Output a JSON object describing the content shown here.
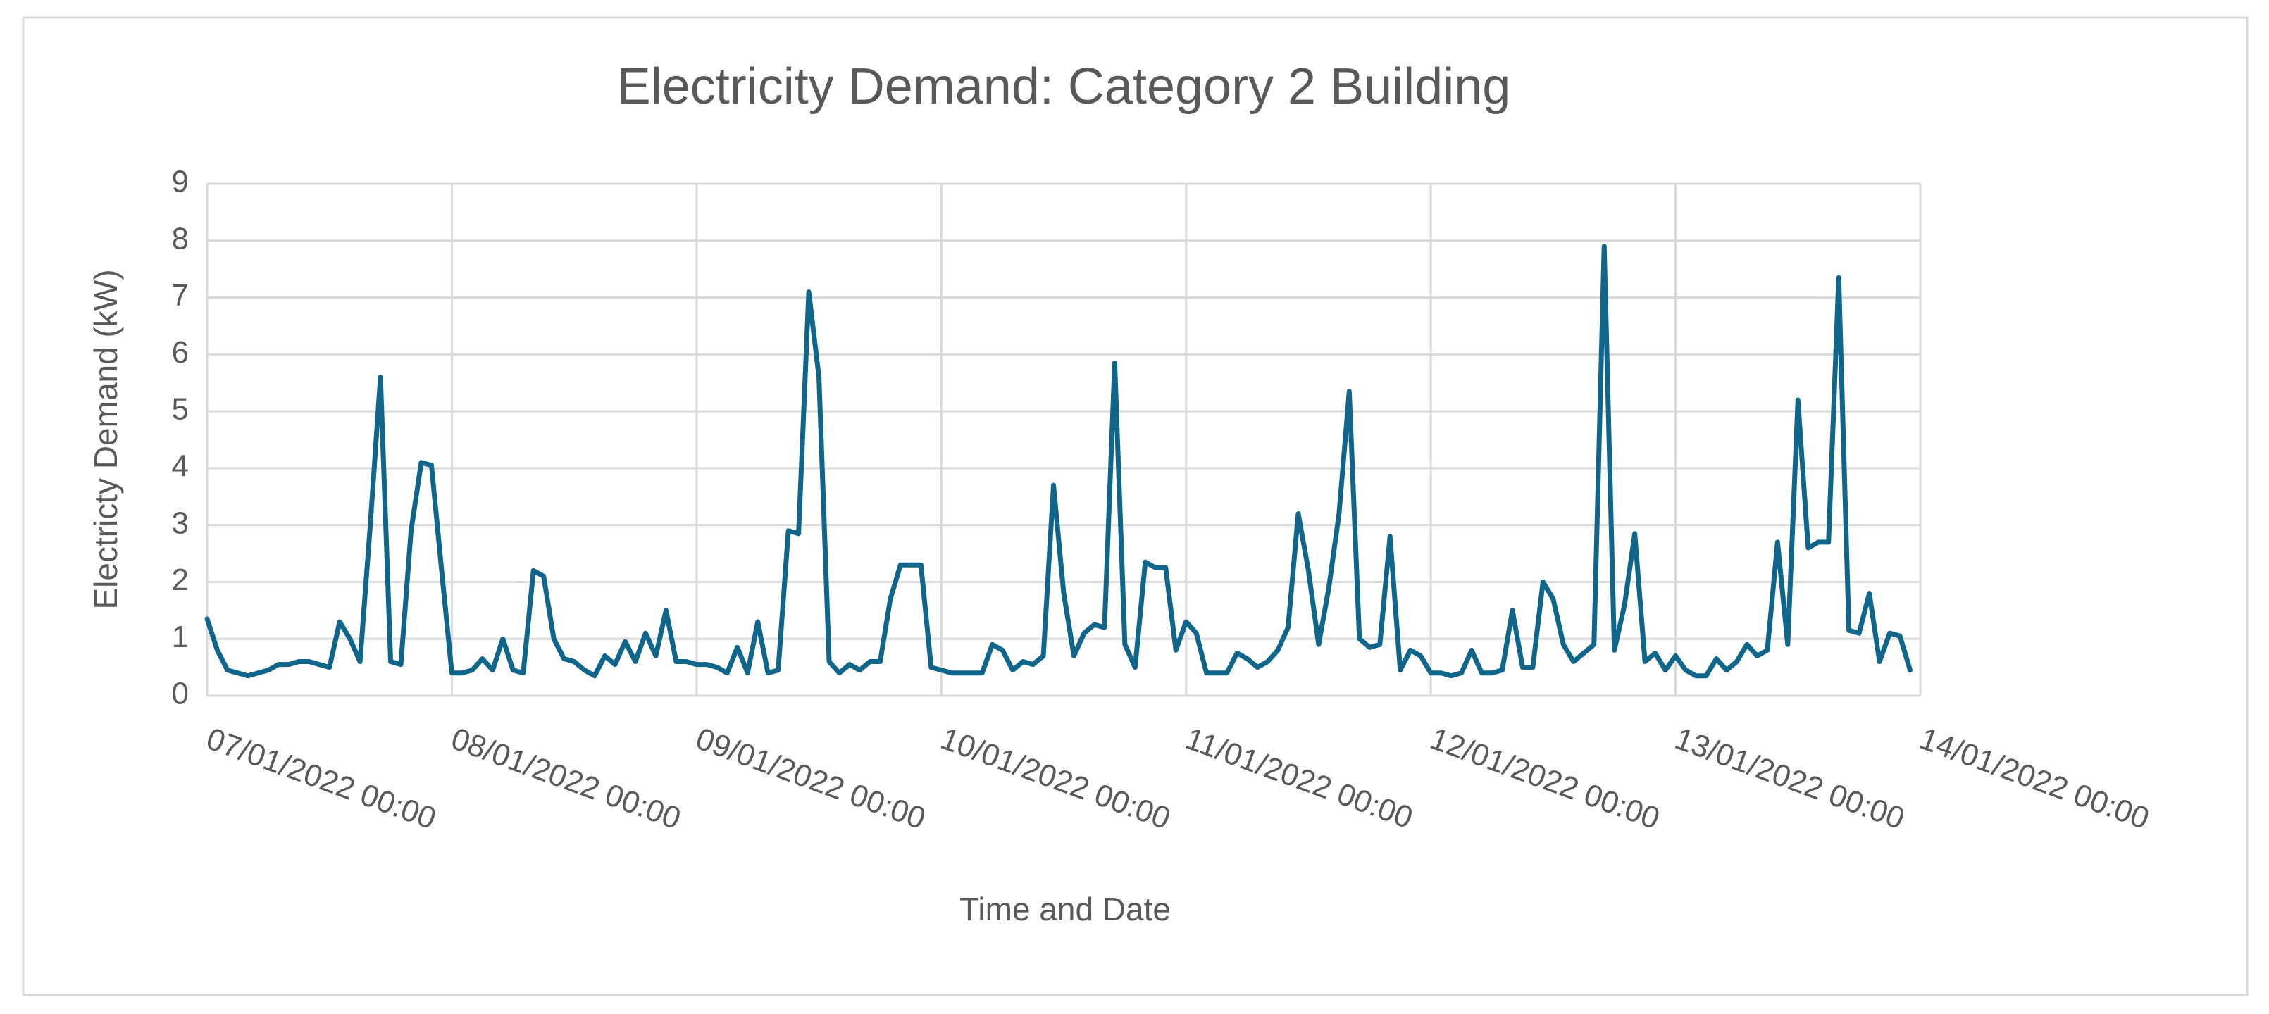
{
  "chart_data": {
    "type": "line",
    "title": "Electricity Demand: Category 2 Building",
    "x_label": "Time and Date",
    "y_label": "Electricty Demand (kW)",
    "color": "#10658a",
    "grid": true,
    "xlim": [
      "07/01/2022 00:00",
      "14/01/2022 00:00"
    ],
    "xticks": [
      "07/01/2022 00:00",
      "08/01/2022 00:00",
      "09/01/2022 00:00",
      "10/01/2022 00:00",
      "11/01/2022 00:00",
      "12/01/2022 00:00",
      "13/01/2022 00:00",
      "14/01/2022 00:00"
    ],
    "ylim": [
      0,
      9
    ],
    "yticks": [
      0,
      1,
      2,
      3,
      4,
      5,
      6,
      7,
      8,
      9
    ],
    "x": [
      "07/01/2022 00:00",
      "07/01/2022 01:00",
      "07/01/2022 02:00",
      "07/01/2022 03:00",
      "07/01/2022 04:00",
      "07/01/2022 05:00",
      "07/01/2022 06:00",
      "07/01/2022 07:00",
      "07/01/2022 08:00",
      "07/01/2022 09:00",
      "07/01/2022 10:00",
      "07/01/2022 11:00",
      "07/01/2022 12:00",
      "07/01/2022 13:00",
      "07/01/2022 14:00",
      "07/01/2022 15:00",
      "07/01/2022 16:00",
      "07/01/2022 17:00",
      "07/01/2022 18:00",
      "07/01/2022 19:00",
      "07/01/2022 20:00",
      "07/01/2022 21:00",
      "07/01/2022 22:00",
      "07/01/2022 23:00",
      "08/01/2022 00:00",
      "08/01/2022 01:00",
      "08/01/2022 02:00",
      "08/01/2022 03:00",
      "08/01/2022 04:00",
      "08/01/2022 05:00",
      "08/01/2022 06:00",
      "08/01/2022 07:00",
      "08/01/2022 08:00",
      "08/01/2022 09:00",
      "08/01/2022 10:00",
      "08/01/2022 11:00",
      "08/01/2022 12:00",
      "08/01/2022 13:00",
      "08/01/2022 14:00",
      "08/01/2022 15:00",
      "08/01/2022 16:00",
      "08/01/2022 17:00",
      "08/01/2022 18:00",
      "08/01/2022 19:00",
      "08/01/2022 20:00",
      "08/01/2022 21:00",
      "08/01/2022 22:00",
      "08/01/2022 23:00",
      "09/01/2022 00:00",
      "09/01/2022 01:00",
      "09/01/2022 02:00",
      "09/01/2022 03:00",
      "09/01/2022 04:00",
      "09/01/2022 05:00",
      "09/01/2022 06:00",
      "09/01/2022 07:00",
      "09/01/2022 08:00",
      "09/01/2022 09:00",
      "09/01/2022 10:00",
      "09/01/2022 11:00",
      "09/01/2022 12:00",
      "09/01/2022 13:00",
      "09/01/2022 14:00",
      "09/01/2022 15:00",
      "09/01/2022 16:00",
      "09/01/2022 17:00",
      "09/01/2022 18:00",
      "09/01/2022 19:00",
      "09/01/2022 20:00",
      "09/01/2022 21:00",
      "09/01/2022 22:00",
      "09/01/2022 23:00",
      "10/01/2022 00:00",
      "10/01/2022 01:00",
      "10/01/2022 02:00",
      "10/01/2022 03:00",
      "10/01/2022 04:00",
      "10/01/2022 05:00",
      "10/01/2022 06:00",
      "10/01/2022 07:00",
      "10/01/2022 08:00",
      "10/01/2022 09:00",
      "10/01/2022 10:00",
      "10/01/2022 11:00",
      "10/01/2022 12:00",
      "10/01/2022 13:00",
      "10/01/2022 14:00",
      "10/01/2022 15:00",
      "10/01/2022 16:00",
      "10/01/2022 17:00",
      "10/01/2022 18:00",
      "10/01/2022 19:00",
      "10/01/2022 20:00",
      "10/01/2022 21:00",
      "10/01/2022 22:00",
      "10/01/2022 23:00",
      "11/01/2022 00:00",
      "11/01/2022 01:00",
      "11/01/2022 02:00",
      "11/01/2022 03:00",
      "11/01/2022 04:00",
      "11/01/2022 05:00",
      "11/01/2022 06:00",
      "11/01/2022 07:00",
      "11/01/2022 08:00",
      "11/01/2022 09:00",
      "11/01/2022 10:00",
      "11/01/2022 11:00",
      "11/01/2022 12:00",
      "11/01/2022 13:00",
      "11/01/2022 14:00",
      "11/01/2022 15:00",
      "11/01/2022 16:00",
      "11/01/2022 17:00",
      "11/01/2022 18:00",
      "11/01/2022 19:00",
      "11/01/2022 20:00",
      "11/01/2022 21:00",
      "11/01/2022 22:00",
      "11/01/2022 23:00",
      "12/01/2022 00:00",
      "12/01/2022 01:00",
      "12/01/2022 02:00",
      "12/01/2022 03:00",
      "12/01/2022 04:00",
      "12/01/2022 05:00",
      "12/01/2022 06:00",
      "12/01/2022 07:00",
      "12/01/2022 08:00",
      "12/01/2022 09:00",
      "12/01/2022 10:00",
      "12/01/2022 11:00",
      "12/01/2022 12:00",
      "12/01/2022 13:00",
      "12/01/2022 14:00",
      "12/01/2022 15:00",
      "12/01/2022 16:00",
      "12/01/2022 17:00",
      "12/01/2022 18:00",
      "12/01/2022 19:00",
      "12/01/2022 20:00",
      "12/01/2022 21:00",
      "12/01/2022 22:00",
      "12/01/2022 23:00",
      "13/01/2022 00:00",
      "13/01/2022 01:00",
      "13/01/2022 02:00",
      "13/01/2022 03:00",
      "13/01/2022 04:00",
      "13/01/2022 05:00",
      "13/01/2022 06:00",
      "13/01/2022 07:00",
      "13/01/2022 08:00",
      "13/01/2022 09:00",
      "13/01/2022 10:00",
      "13/01/2022 11:00",
      "13/01/2022 12:00",
      "13/01/2022 13:00",
      "13/01/2022 14:00",
      "13/01/2022 15:00",
      "13/01/2022 16:00",
      "13/01/2022 17:00",
      "13/01/2022 18:00",
      "13/01/2022 19:00",
      "13/01/2022 20:00",
      "13/01/2022 21:00",
      "13/01/2022 22:00",
      "13/01/2022 23:00"
    ],
    "values": [
      1.35,
      0.8,
      0.45,
      0.4,
      0.35,
      0.4,
      0.45,
      0.55,
      0.55,
      0.6,
      0.6,
      0.55,
      0.5,
      1.3,
      1.0,
      0.6,
      3.0,
      5.6,
      0.6,
      0.55,
      2.9,
      4.1,
      4.05,
      2.2,
      0.4,
      0.4,
      0.45,
      0.65,
      0.45,
      1.0,
      0.45,
      0.4,
      2.2,
      2.1,
      1.0,
      0.65,
      0.6,
      0.45,
      0.35,
      0.7,
      0.55,
      0.95,
      0.6,
      1.1,
      0.7,
      1.5,
      0.6,
      0.6,
      0.55,
      0.55,
      0.5,
      0.4,
      0.85,
      0.4,
      1.3,
      0.4,
      0.45,
      2.9,
      2.85,
      7.1,
      5.6,
      0.6,
      0.4,
      0.55,
      0.45,
      0.6,
      0.6,
      1.7,
      2.3,
      2.3,
      2.3,
      0.5,
      0.45,
      0.4,
      0.4,
      0.4,
      0.4,
      0.9,
      0.8,
      0.45,
      0.6,
      0.55,
      0.7,
      3.7,
      1.8,
      0.7,
      1.1,
      1.25,
      1.2,
      5.85,
      0.9,
      0.5,
      2.35,
      2.25,
      2.25,
      0.8,
      1.3,
      1.1,
      0.4,
      0.4,
      0.4,
      0.75,
      0.65,
      0.5,
      0.6,
      0.8,
      1.2,
      3.2,
      2.2,
      0.9,
      1.9,
      3.2,
      5.35,
      1.0,
      0.85,
      0.9,
      2.8,
      0.45,
      0.8,
      0.7,
      0.4,
      0.4,
      0.35,
      0.4,
      0.8,
      0.4,
      0.4,
      0.45,
      1.5,
      0.5,
      0.5,
      2.0,
      1.7,
      0.9,
      0.6,
      0.75,
      0.9,
      7.9,
      0.8,
      1.6,
      2.85,
      0.6,
      0.75,
      0.45,
      0.7,
      0.45,
      0.35,
      0.35,
      0.65,
      0.45,
      0.6,
      0.9,
      0.7,
      0.8,
      2.7,
      0.9,
      5.2,
      2.6,
      2.7,
      2.7,
      7.35,
      1.15,
      1.1,
      1.8,
      0.6,
      1.1,
      1.05,
      0.45
    ]
  }
}
